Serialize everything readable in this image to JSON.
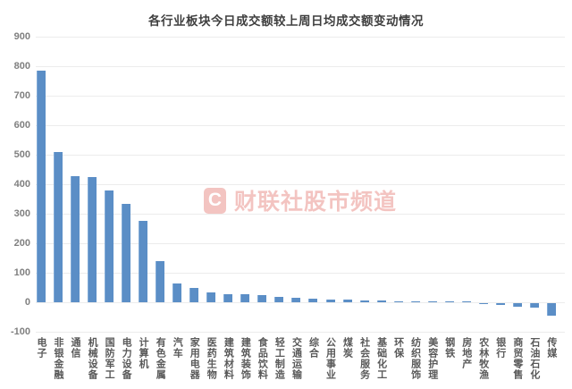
{
  "chart_data": {
    "type": "bar",
    "title": "各行业板块今日成交额较上周日均成交额变动情况",
    "categories": [
      "电子",
      "非银金融",
      "通信",
      "机械设备",
      "国防军工",
      "电力设备",
      "计算机",
      "有色金属",
      "汽车",
      "家用电器",
      "医药生物",
      "建筑材料",
      "建筑装饰",
      "食品饮料",
      "轻工制造",
      "交通运输",
      "综合",
      "公用事业",
      "煤炭",
      "社会服务",
      "基础化工",
      "环保",
      "纺织服饰",
      "美容护理",
      "钢铁",
      "房地产",
      "农林牧渔",
      "银行",
      "商贸零售",
      "石油石化",
      "传媒"
    ],
    "values": [
      785,
      510,
      427,
      424,
      378,
      332,
      277,
      140,
      65,
      48,
      33,
      28,
      27,
      24,
      18,
      15,
      12,
      10,
      8,
      7,
      5,
      4,
      3,
      3,
      2,
      2,
      -4,
      -5,
      -12,
      -15,
      -42
    ],
    "xlabel": "",
    "ylabel": "",
    "ylim": [
      -100,
      900
    ],
    "yticks": [
      900,
      800,
      700,
      600,
      500,
      400,
      300,
      200,
      100,
      0,
      -100
    ],
    "grid": "horizontal",
    "legend": "none",
    "bar_color": "#5b8ec6"
  },
  "watermark": {
    "logo_text": "C",
    "text": "财联社股市频道",
    "color": "#dd4b42"
  }
}
